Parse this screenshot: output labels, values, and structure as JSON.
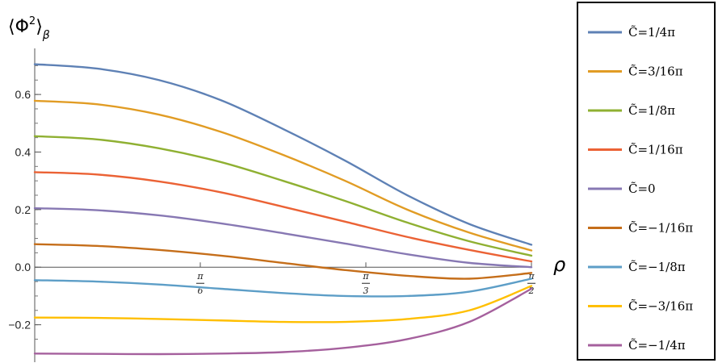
{
  "chart_data": {
    "type": "line",
    "ylabel": {
      "base": "⟨Φ",
      "sup": "2",
      "close": "⟩",
      "sub": "β"
    },
    "xlabel": "ρ",
    "xlim": [
      0,
      1.5708
    ],
    "ylim": [
      -0.33,
      0.76
    ],
    "x_ticks": [
      {
        "value": 0.5236,
        "num": "π",
        "den": "6"
      },
      {
        "value": 1.0472,
        "num": "π",
        "den": "3"
      },
      {
        "value": 1.5708,
        "num": "π",
        "den": "2"
      }
    ],
    "y_ticks": [
      {
        "value": -0.2,
        "label": "−0.2"
      },
      {
        "value": 0.0,
        "label": "0.0"
      },
      {
        "value": 0.2,
        "label": "0.2"
      },
      {
        "value": 0.4,
        "label": "0.4"
      },
      {
        "value": 0.6,
        "label": "0.6"
      }
    ],
    "x": [
      0,
      0.1963,
      0.3927,
      0.589,
      0.7854,
      0.9817,
      1.1781,
      1.3744,
      1.5708
    ],
    "series": [
      {
        "name": "C̃=1/4π",
        "color": "#5e81b5",
        "values": [
          0.705,
          0.69,
          0.65,
          0.58,
          0.48,
          0.37,
          0.25,
          0.15,
          0.078
        ]
      },
      {
        "name": "C̃=3/16π",
        "color": "#e19c24",
        "values": [
          0.578,
          0.566,
          0.53,
          0.47,
          0.39,
          0.3,
          0.2,
          0.12,
          0.058
        ]
      },
      {
        "name": "C̃=1/8π",
        "color": "#8fb032",
        "values": [
          0.455,
          0.444,
          0.413,
          0.365,
          0.3,
          0.23,
          0.155,
          0.09,
          0.04
        ]
      },
      {
        "name": "C̃=1/16π",
        "color": "#eb6235",
        "values": [
          0.33,
          0.322,
          0.298,
          0.26,
          0.21,
          0.158,
          0.105,
          0.06,
          0.02
        ]
      },
      {
        "name": "C̃=0",
        "color": "#8778b3",
        "values": [
          0.205,
          0.198,
          0.18,
          0.152,
          0.118,
          0.082,
          0.045,
          0.015,
          0.0
        ]
      },
      {
        "name": "C̃=−1/16π",
        "color": "#c56e1a",
        "values": [
          0.08,
          0.074,
          0.06,
          0.04,
          0.015,
          -0.01,
          -0.03,
          -0.04,
          -0.02
        ]
      },
      {
        "name": "C̃=−1/8π",
        "color": "#5d9ec7",
        "values": [
          -0.045,
          -0.05,
          -0.06,
          -0.075,
          -0.09,
          -0.1,
          -0.1,
          -0.085,
          -0.04
        ]
      },
      {
        "name": "C̃=−3/16π",
        "color": "#ffbf00",
        "values": [
          -0.175,
          -0.176,
          -0.18,
          -0.185,
          -0.19,
          -0.19,
          -0.18,
          -0.15,
          -0.065
        ]
      },
      {
        "name": "C̃=−1/4π",
        "color": "#a5609d",
        "values": [
          -0.3,
          -0.301,
          -0.302,
          -0.3,
          -0.295,
          -0.28,
          -0.25,
          -0.19,
          -0.075
        ]
      }
    ],
    "legend": "right",
    "grid": false
  }
}
